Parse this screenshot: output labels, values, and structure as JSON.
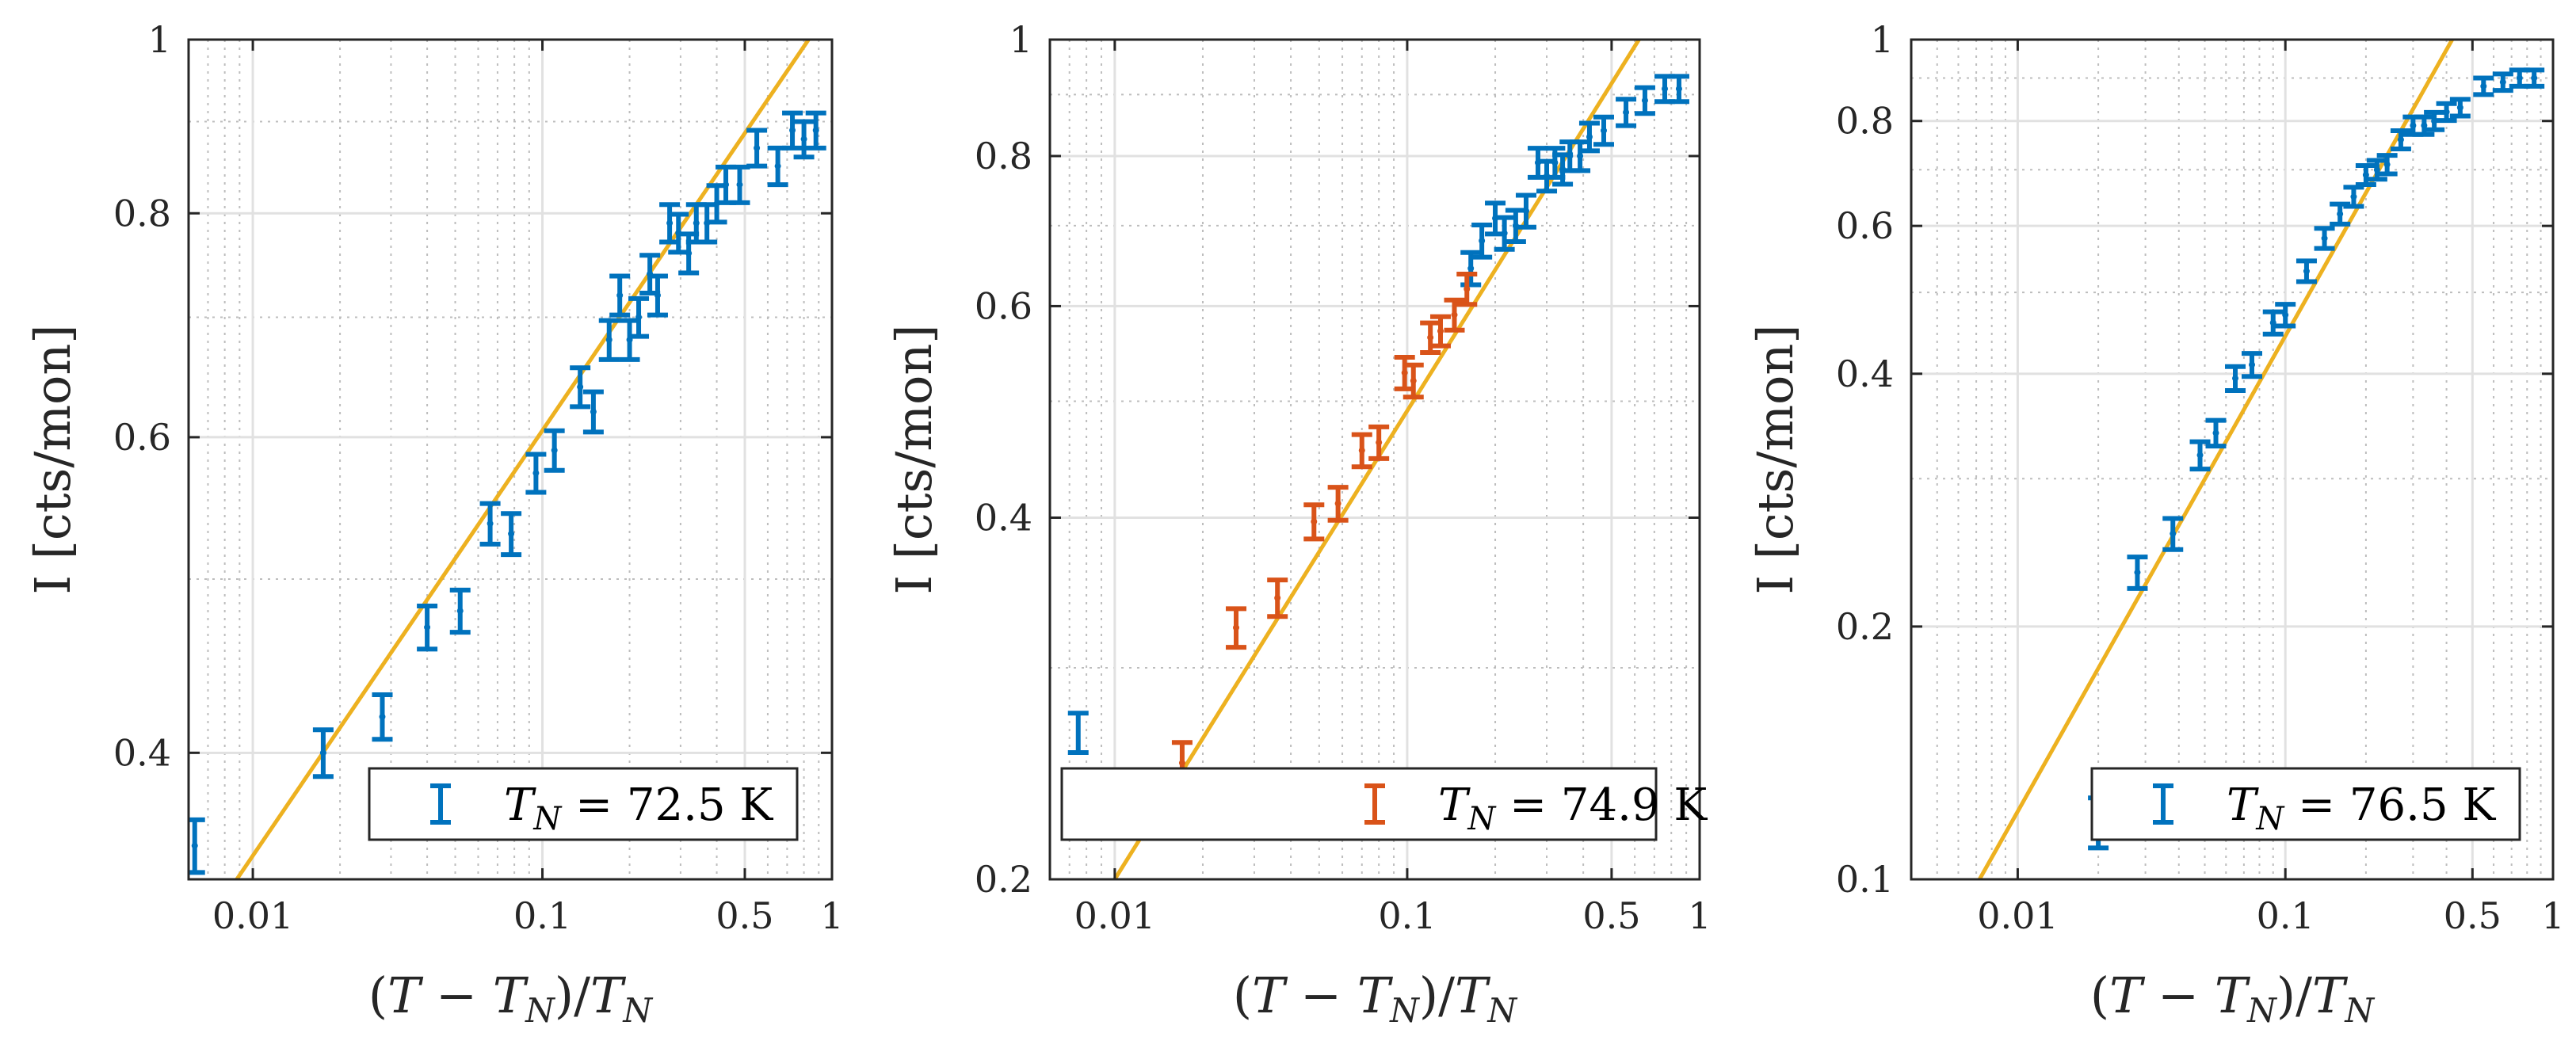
{
  "chart_data": [
    {
      "type": "scatter",
      "xscale": "log",
      "yscale": "log",
      "xlim": [
        0.006,
        1
      ],
      "ylim": [
        0.34,
        1
      ],
      "xticks": [
        0.01,
        0.1,
        0.5,
        1
      ],
      "xticklabels": [
        "0.01",
        "0.1",
        "0.5",
        "1"
      ],
      "yticks": [
        0.4,
        0.6,
        0.8,
        1
      ],
      "yticklabels": [
        "0.4",
        "0.6",
        "0.8",
        "1"
      ],
      "xlabel": "(T − T_N)/T_N",
      "ylabel": "I [cts/mon]",
      "grid": true,
      "legend_placement": "bottom-right",
      "series": [
        {
          "name": "T_N = 72.5 K",
          "legend_text": "T<sub>N</sub> = 72.5 K",
          "color": "#0072BD",
          "points": [
            {
              "x": 0.0063,
              "y": 0.355,
              "err": 0.012
            },
            {
              "x": 0.0175,
              "y": 0.4,
              "err": 0.012
            },
            {
              "x": 0.028,
              "y": 0.419,
              "err": 0.012
            },
            {
              "x": 0.04,
              "y": 0.47,
              "err": 0.013
            },
            {
              "x": 0.052,
              "y": 0.48,
              "err": 0.013
            },
            {
              "x": 0.066,
              "y": 0.537,
              "err": 0.014
            },
            {
              "x": 0.078,
              "y": 0.53,
              "err": 0.014
            },
            {
              "x": 0.095,
              "y": 0.573,
              "err": 0.014
            },
            {
              "x": 0.11,
              "y": 0.59,
              "err": 0.015
            },
            {
              "x": 0.135,
              "y": 0.64,
              "err": 0.016
            },
            {
              "x": 0.15,
              "y": 0.62,
              "err": 0.016
            },
            {
              "x": 0.17,
              "y": 0.68,
              "err": 0.017
            },
            {
              "x": 0.185,
              "y": 0.72,
              "err": 0.018
            },
            {
              "x": 0.2,
              "y": 0.68,
              "err": 0.017
            },
            {
              "x": 0.215,
              "y": 0.7,
              "err": 0.017
            },
            {
              "x": 0.235,
              "y": 0.74,
              "err": 0.018
            },
            {
              "x": 0.25,
              "y": 0.72,
              "err": 0.018
            },
            {
              "x": 0.275,
              "y": 0.79,
              "err": 0.019
            },
            {
              "x": 0.295,
              "y": 0.78,
              "err": 0.019
            },
            {
              "x": 0.32,
              "y": 0.76,
              "err": 0.019
            },
            {
              "x": 0.34,
              "y": 0.79,
              "err": 0.019
            },
            {
              "x": 0.37,
              "y": 0.79,
              "err": 0.019
            },
            {
              "x": 0.4,
              "y": 0.81,
              "err": 0.019
            },
            {
              "x": 0.43,
              "y": 0.83,
              "err": 0.019
            },
            {
              "x": 0.48,
              "y": 0.83,
              "err": 0.019
            },
            {
              "x": 0.55,
              "y": 0.87,
              "err": 0.02
            },
            {
              "x": 0.65,
              "y": 0.85,
              "err": 0.02
            },
            {
              "x": 0.73,
              "y": 0.89,
              "err": 0.02
            },
            {
              "x": 0.8,
              "y": 0.88,
              "err": 0.02
            },
            {
              "x": 0.88,
              "y": 0.89,
              "err": 0.02
            }
          ]
        }
      ],
      "fit_line": {
        "color": "#EDB120",
        "x": [
          0.0088,
          0.83
        ],
        "y": [
          0.34,
          1.0
        ]
      }
    },
    {
      "type": "scatter",
      "xscale": "log",
      "yscale": "log",
      "xlim": [
        0.006,
        1
      ],
      "ylim": [
        0.2,
        1
      ],
      "xticks": [
        0.01,
        0.1,
        0.5,
        1
      ],
      "xticklabels": [
        "0.01",
        "0.1",
        "0.5",
        "1"
      ],
      "yticks": [
        0.2,
        0.4,
        0.6,
        0.8,
        1
      ],
      "yticklabels": [
        "0.2",
        "0.4",
        "0.6",
        "0.8",
        "1"
      ],
      "xlabel": "(T − T_N)/T_N",
      "ylabel": "I [cts/mon]",
      "grid": true,
      "legend_placement": "bottom",
      "series": [
        {
          "name": "",
          "legend_text": "",
          "color": "#0072BD",
          "points": [
            {
              "x": 0.165,
              "y": 0.645,
              "err": 0.02
            },
            {
              "x": 0.18,
              "y": 0.68,
              "err": 0.021
            },
            {
              "x": 0.2,
              "y": 0.71,
              "err": 0.021
            },
            {
              "x": 0.215,
              "y": 0.69,
              "err": 0.021
            },
            {
              "x": 0.235,
              "y": 0.7,
              "err": 0.021
            },
            {
              "x": 0.255,
              "y": 0.72,
              "err": 0.022
            },
            {
              "x": 0.28,
              "y": 0.79,
              "err": 0.022
            },
            {
              "x": 0.3,
              "y": 0.77,
              "err": 0.022
            },
            {
              "x": 0.32,
              "y": 0.79,
              "err": 0.022
            },
            {
              "x": 0.34,
              "y": 0.78,
              "err": 0.022
            },
            {
              "x": 0.36,
              "y": 0.8,
              "err": 0.022
            },
            {
              "x": 0.39,
              "y": 0.8,
              "err": 0.022
            },
            {
              "x": 0.42,
              "y": 0.83,
              "err": 0.022
            },
            {
              "x": 0.47,
              "y": 0.84,
              "err": 0.022
            },
            {
              "x": 0.56,
              "y": 0.87,
              "err": 0.022
            },
            {
              "x": 0.65,
              "y": 0.89,
              "err": 0.022
            },
            {
              "x": 0.76,
              "y": 0.91,
              "err": 0.022
            },
            {
              "x": 0.85,
              "y": 0.91,
              "err": 0.022
            }
          ]
        },
        {
          "name": "T_N = 74.9 K",
          "legend_text": "T<sub>N</sub> = 74.9 K",
          "color": "#D95319",
          "points": [
            {
              "x": 0.017,
              "y": 0.25,
              "err": 0.01
            },
            {
              "x": 0.026,
              "y": 0.324,
              "err": 0.012
            },
            {
              "x": 0.036,
              "y": 0.343,
              "err": 0.012
            },
            {
              "x": 0.048,
              "y": 0.397,
              "err": 0.013
            },
            {
              "x": 0.058,
              "y": 0.411,
              "err": 0.013
            },
            {
              "x": 0.07,
              "y": 0.455,
              "err": 0.014
            },
            {
              "x": 0.08,
              "y": 0.462,
              "err": 0.014
            },
            {
              "x": 0.098,
              "y": 0.528,
              "err": 0.016
            },
            {
              "x": 0.105,
              "y": 0.52,
              "err": 0.016
            },
            {
              "x": 0.12,
              "y": 0.565,
              "err": 0.016
            },
            {
              "x": 0.13,
              "y": 0.572,
              "err": 0.016
            },
            {
              "x": 0.145,
              "y": 0.59,
              "err": 0.017
            },
            {
              "x": 0.16,
              "y": 0.62,
              "err": 0.018
            }
          ]
        }
      ],
      "single_legend_marker": {
        "x": 0.0075,
        "y": 0.265,
        "err": 0.01,
        "color": "#0072BD"
      },
      "fit_line": {
        "color": "#EDB120",
        "x": [
          0.01,
          0.62
        ],
        "y": [
          0.2,
          1.0
        ]
      }
    },
    {
      "type": "scatter",
      "xscale": "log",
      "yscale": "log",
      "xlim": [
        0.004,
        1
      ],
      "ylim": [
        0.1,
        1
      ],
      "xticks": [
        0.01,
        0.1,
        0.5,
        1
      ],
      "xticklabels": [
        "0.01",
        "0.1",
        "0.5",
        "1"
      ],
      "yticks": [
        0.1,
        0.2,
        0.4,
        0.6,
        0.8,
        1
      ],
      "yticklabels": [
        "0.1",
        "0.2",
        "0.4",
        "0.6",
        "0.8",
        "1"
      ],
      "xlabel": "(T − T_N)/T_N",
      "ylabel": "I [cts/mon]",
      "grid": true,
      "legend_placement": "bottom-right",
      "series": [
        {
          "name": "T_N = 76.5 K",
          "legend_text": "T<sub>N</sub> = 76.5 K",
          "color": "#0072BD",
          "points": [
            {
              "x": 0.02,
              "y": 0.117,
              "err": 0.008
            },
            {
              "x": 0.028,
              "y": 0.232,
              "err": 0.01
            },
            {
              "x": 0.038,
              "y": 0.258,
              "err": 0.011
            },
            {
              "x": 0.048,
              "y": 0.32,
              "err": 0.012
            },
            {
              "x": 0.055,
              "y": 0.34,
              "err": 0.012
            },
            {
              "x": 0.065,
              "y": 0.395,
              "err": 0.013
            },
            {
              "x": 0.075,
              "y": 0.41,
              "err": 0.013
            },
            {
              "x": 0.09,
              "y": 0.46,
              "err": 0.014
            },
            {
              "x": 0.1,
              "y": 0.47,
              "err": 0.014
            },
            {
              "x": 0.12,
              "y": 0.53,
              "err": 0.015
            },
            {
              "x": 0.14,
              "y": 0.58,
              "err": 0.016
            },
            {
              "x": 0.16,
              "y": 0.62,
              "err": 0.017
            },
            {
              "x": 0.18,
              "y": 0.65,
              "err": 0.017
            },
            {
              "x": 0.2,
              "y": 0.69,
              "err": 0.018
            },
            {
              "x": 0.22,
              "y": 0.7,
              "err": 0.018
            },
            {
              "x": 0.24,
              "y": 0.71,
              "err": 0.018
            },
            {
              "x": 0.27,
              "y": 0.76,
              "err": 0.019
            },
            {
              "x": 0.3,
              "y": 0.79,
              "err": 0.019
            },
            {
              "x": 0.33,
              "y": 0.79,
              "err": 0.019
            },
            {
              "x": 0.36,
              "y": 0.8,
              "err": 0.019
            },
            {
              "x": 0.4,
              "y": 0.82,
              "err": 0.019
            },
            {
              "x": 0.45,
              "y": 0.83,
              "err": 0.019
            },
            {
              "x": 0.55,
              "y": 0.88,
              "err": 0.02
            },
            {
              "x": 0.65,
              "y": 0.89,
              "err": 0.02
            },
            {
              "x": 0.75,
              "y": 0.9,
              "err": 0.02
            },
            {
              "x": 0.85,
              "y": 0.9,
              "err": 0.02
            }
          ]
        }
      ],
      "fit_line": {
        "color": "#EDB120",
        "x": [
          0.0072,
          0.42
        ],
        "y": [
          0.1,
          1.0
        ]
      }
    }
  ]
}
